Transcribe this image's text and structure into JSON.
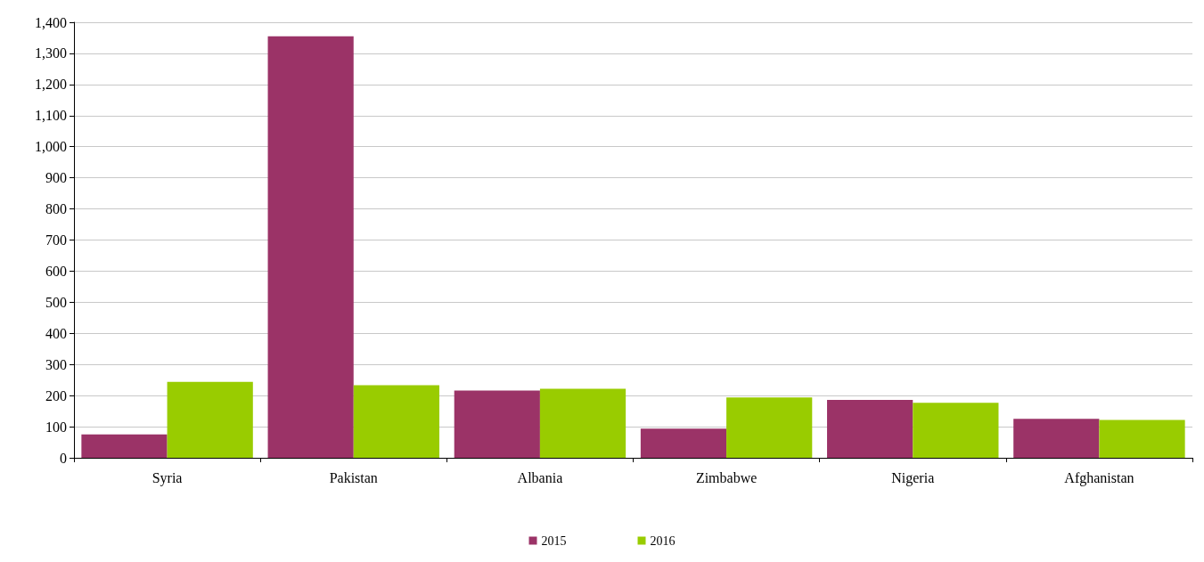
{
  "chart_data": {
    "type": "bar",
    "categories": [
      "Syria",
      "Pakistan",
      "Albania",
      "Zimbabwe",
      "Nigeria",
      "Afghanistan"
    ],
    "series": [
      {
        "name": "2015",
        "color": "#9b3367",
        "values": [
          75,
          1355,
          216,
          94,
          186,
          125
        ]
      },
      {
        "name": "2016",
        "color": "#99cc00",
        "values": [
          244,
          233,
          222,
          194,
          177,
          122
        ]
      }
    ],
    "ylim": [
      0,
      1400
    ],
    "yticks": [
      0,
      100,
      200,
      300,
      400,
      500,
      600,
      700,
      800,
      900,
      {
        "value": 1000,
        "label": "1,000"
      },
      {
        "value": 1100,
        "label": "1,100"
      },
      {
        "value": 1200,
        "label": "1,200"
      },
      {
        "value": 1300,
        "label": "1,300"
      },
      {
        "value": 1400,
        "label": "1,400"
      }
    ],
    "grid": "y",
    "legend": "bottom"
  }
}
